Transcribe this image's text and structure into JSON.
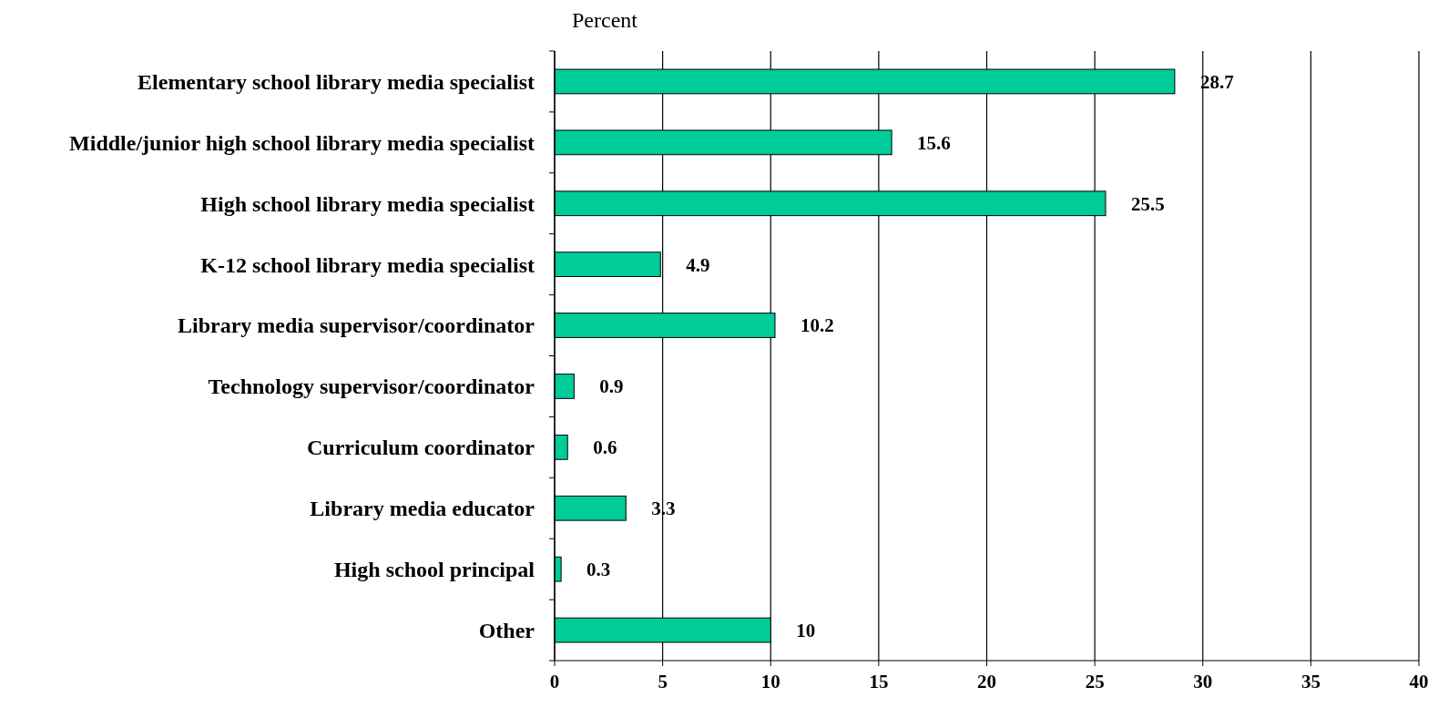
{
  "chart_data": {
    "type": "bar",
    "orientation": "horizontal",
    "xlabel": "Percent",
    "categories": [
      "Elementary school library media specialist",
      "Middle/junior high school library media specialist",
      "High school library media specialist",
      "K-12 school library media specialist",
      "Library media supervisor/coordinator",
      "Technology supervisor/coordinator",
      "Curriculum coordinator",
      "Library media educator",
      "High school principal",
      "Other"
    ],
    "values": [
      28.7,
      15.6,
      25.5,
      4.9,
      10.2,
      0.9,
      0.6,
      3.3,
      0.3,
      10
    ],
    "color": "#00cc99",
    "xlim": [
      0,
      40
    ],
    "xticks": [
      0,
      5,
      10,
      15,
      20,
      25,
      30,
      35,
      40
    ],
    "grid": "x",
    "data_labels": true
  }
}
